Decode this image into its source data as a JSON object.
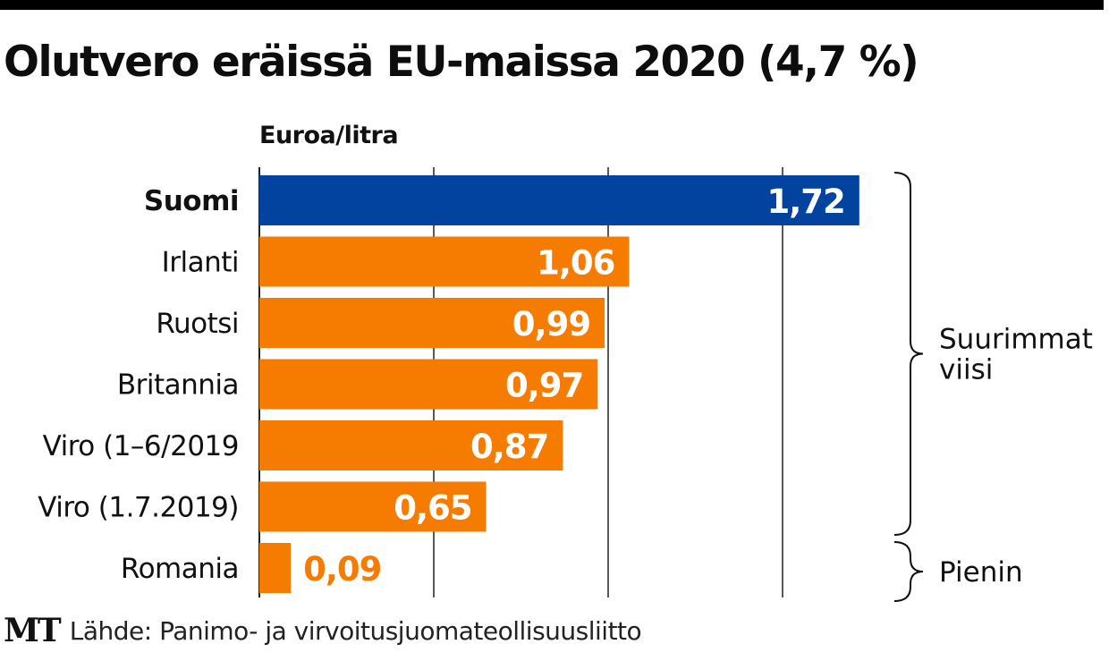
{
  "header": {
    "title": "Olutvero eräissä EU-maissa 2020 (4,7 %)",
    "unit_label": "Euroa/litra"
  },
  "footer": {
    "logo": "MT",
    "source": "Lähde: Panimo- ja virvoitusjuomateollisuusliitto"
  },
  "colors": {
    "highlight": "#0343a0",
    "default": "#f57c00",
    "grid": "#222222",
    "value_inside": "#ffffff"
  },
  "chart_data": {
    "type": "bar",
    "orientation": "horizontal",
    "title": "Olutvero eräissä EU-maissa 2020 (4,7 %)",
    "xlabel": "Euroa/litra",
    "ylabel": "",
    "xlim": [
      0,
      1.72
    ],
    "gridlines_at": [
      0,
      0.5,
      1.0,
      1.5
    ],
    "grid": true,
    "categories": [
      "Suomi",
      "Irlanti",
      "Ruotsi",
      "Britannia",
      "Viro (1–6/2019",
      "Viro (1.7.2019)",
      "Romania"
    ],
    "values": [
      1.72,
      1.06,
      0.99,
      0.97,
      0.87,
      0.65,
      0.09
    ],
    "value_labels": [
      "1,72",
      "1,06",
      "0,99",
      "0,97",
      "0,87",
      "0,65",
      "0,09"
    ],
    "highlighted": [
      "Suomi"
    ],
    "annotations": [
      {
        "type": "brace",
        "label": "Suurimmat viisi",
        "label_lines": [
          "Suurimmat",
          "viisi"
        ],
        "spans": [
          "Suomi",
          "Viro (1.7.2019)"
        ]
      },
      {
        "type": "brace",
        "label": "Pienin",
        "label_lines": [
          "Pienin"
        ],
        "spans": [
          "Romania",
          "Romania"
        ]
      }
    ]
  }
}
